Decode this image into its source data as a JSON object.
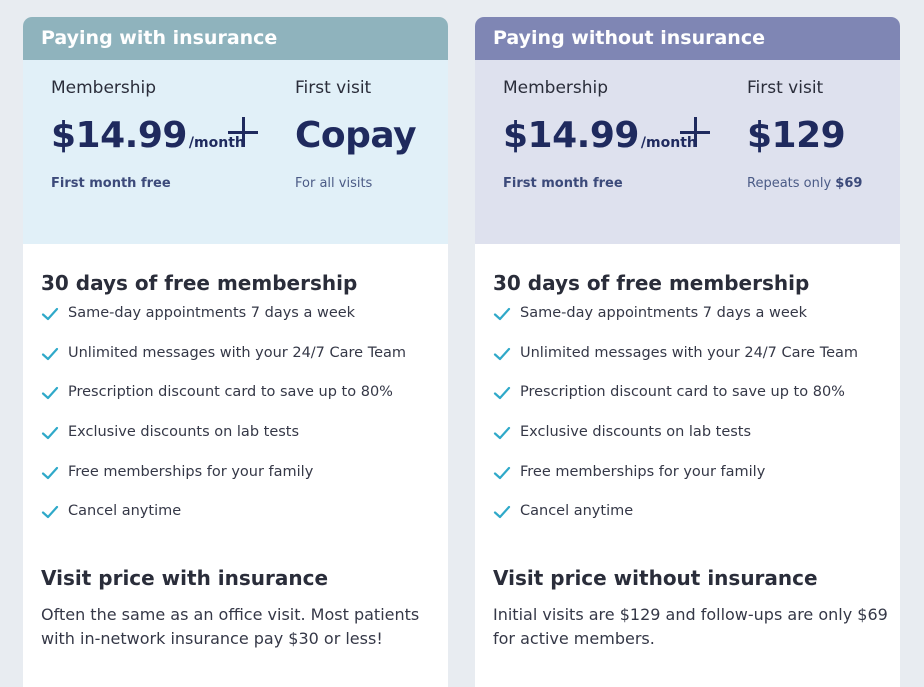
{
  "colors": {
    "check": "#2fa9c9",
    "price": "#1f2a5e",
    "left_header": "#8fb3bd",
    "right_header": "#7f86b4"
  },
  "cards": [
    {
      "header": "Paying with insurance",
      "membership": {
        "label": "Membership",
        "price": "$14.99",
        "period": "/month",
        "note": "First month free"
      },
      "visit": {
        "label": "First visit",
        "price": "Copay",
        "note": "For all visits",
        "note_strong": ""
      },
      "benefits_title": "30 days of free membership",
      "benefits": [
        "Same-day appointments 7 days a week",
        "Unlimited messages with your 24/7 Care Team",
        "Prescription discount card to save up to 80%",
        "Exclusive discounts on lab tests",
        "Free memberships for your family",
        "Cancel anytime"
      ],
      "visit_price_title": "Visit price with insurance",
      "visit_price_text": "Often the same as an office visit. Most patients with in-network insurance pay $30 or less!"
    },
    {
      "header": "Paying without insurance",
      "membership": {
        "label": "Membership",
        "price": "$14.99",
        "period": "/month",
        "note": "First month free"
      },
      "visit": {
        "label": "First visit",
        "price": "$129",
        "note": "Repeats only ",
        "note_strong": "$69"
      },
      "benefits_title": "30 days of free membership",
      "benefits": [
        "Same-day appointments 7 days a week",
        "Unlimited messages with your 24/7 Care Team",
        "Prescription discount card to save up to 80%",
        "Exclusive discounts on lab tests",
        "Free memberships for your family",
        "Cancel anytime"
      ],
      "visit_price_title": "Visit price without insurance",
      "visit_price_text": "Initial visits are $129 and follow-ups are only $69 for active members."
    }
  ]
}
